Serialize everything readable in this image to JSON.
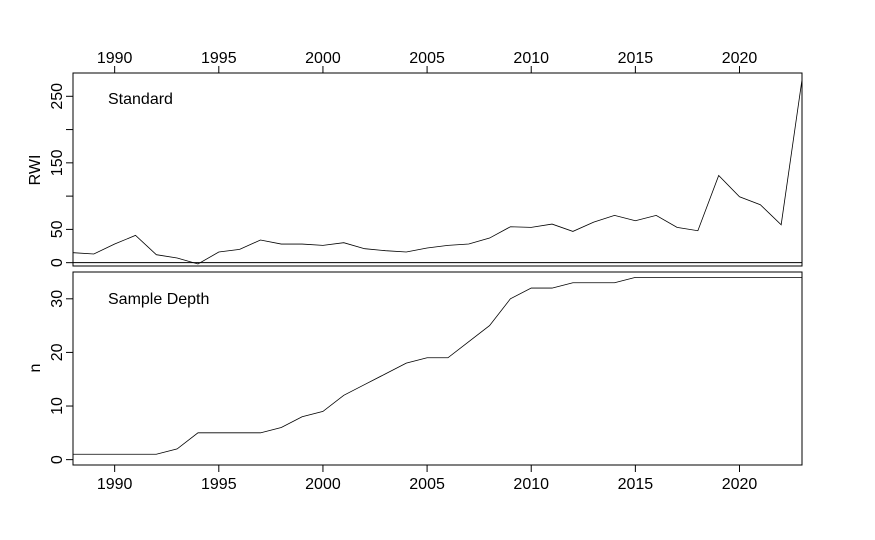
{
  "chart_data": [
    {
      "type": "line",
      "title": "",
      "panel_label": "Standard",
      "ylabel": "RWI",
      "xlabel": "",
      "xlim": [
        1988,
        2023
      ],
      "ylim": [
        -5,
        285
      ],
      "x_ticks": [
        "1990",
        "1995",
        "2000",
        "2005",
        "2010",
        "2015",
        "2020"
      ],
      "x_tick_position": "top",
      "y_ticks": [
        "0",
        "50",
        "150",
        "250"
      ],
      "reference_line_y": 0,
      "grid": false,
      "series": [
        {
          "x": [
            1988,
            1989,
            1990,
            1991,
            1992,
            1993,
            1994,
            1995,
            1996,
            1997,
            1998,
            1999,
            2000,
            2001,
            2002,
            2003,
            2004,
            2005,
            2006,
            2007,
            2008,
            2009,
            2010,
            2011,
            2012,
            2013,
            2014,
            2015,
            2016,
            2017,
            2018,
            2019,
            2020,
            2021,
            2022,
            2023
          ],
          "values": [
            15,
            13,
            28,
            41,
            12,
            7,
            -2,
            16,
            20,
            34,
            28,
            28,
            26,
            30,
            21,
            18,
            16,
            22,
            26,
            28,
            37,
            54,
            53,
            58,
            47,
            61,
            71,
            63,
            71,
            53,
            48,
            131,
            99,
            87,
            57,
            275
          ]
        }
      ]
    },
    {
      "type": "line",
      "title": "",
      "panel_label": "Sample Depth",
      "ylabel": "n",
      "xlabel": "",
      "xlim": [
        1988,
        2023
      ],
      "ylim": [
        -1,
        35
      ],
      "x_ticks": [
        "1990",
        "1995",
        "2000",
        "2005",
        "2010",
        "2015",
        "2020"
      ],
      "x_tick_position": "bottom",
      "y_ticks": [
        "0",
        "10",
        "20",
        "30"
      ],
      "grid": false,
      "series": [
        {
          "x": [
            1988,
            1989,
            1990,
            1991,
            1992,
            1993,
            1994,
            1995,
            1996,
            1997,
            1998,
            1999,
            2000,
            2001,
            2002,
            2003,
            2004,
            2005,
            2006,
            2007,
            2008,
            2009,
            2010,
            2011,
            2012,
            2013,
            2014,
            2015,
            2016,
            2017,
            2018,
            2019,
            2020,
            2021,
            2022,
            2023
          ],
          "values": [
            1,
            1,
            1,
            1,
            1,
            2,
            5,
            5,
            5,
            5,
            6,
            8,
            9,
            12,
            14,
            16,
            18,
            19,
            19,
            22,
            25,
            30,
            32,
            32,
            33,
            33,
            33,
            34,
            34,
            34,
            34,
            34,
            34,
            34,
            34,
            34
          ]
        }
      ]
    }
  ]
}
